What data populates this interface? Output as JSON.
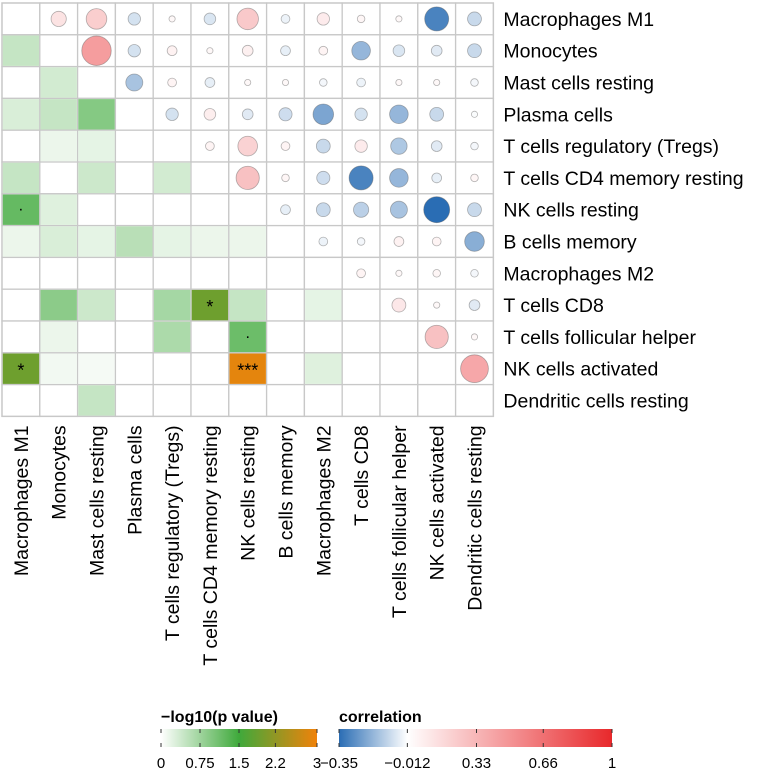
{
  "chart_data": {
    "type": "heatmap",
    "labels": [
      "Macrophages M1",
      "Monocytes",
      "Mast cells resting",
      "Plasma cells",
      "T cells regulatory (Tregs)",
      "T cells CD4 memory resting",
      "NK cells resting",
      "B cells memory",
      "Macrophages M2",
      "T cells CD8",
      "T cells follicular helper",
      "NK cells activated",
      "Dendritic cells resting"
    ],
    "lower_triangle": {
      "measure": "-log10(p value)",
      "cells": [
        {
          "row": 1,
          "col": 0,
          "value": 0.45,
          "sig": ""
        },
        {
          "row": 2,
          "col": 1,
          "value": 0.35,
          "sig": ""
        },
        {
          "row": 3,
          "col": 0,
          "value": 0.3,
          "sig": ""
        },
        {
          "row": 3,
          "col": 1,
          "value": 0.45,
          "sig": ""
        },
        {
          "row": 3,
          "col": 2,
          "value": 0.95,
          "sig": ""
        },
        {
          "row": 4,
          "col": 1,
          "value": 0.15,
          "sig": ""
        },
        {
          "row": 4,
          "col": 2,
          "value": 0.2,
          "sig": ""
        },
        {
          "row": 5,
          "col": 0,
          "value": 0.45,
          "sig": ""
        },
        {
          "row": 5,
          "col": 2,
          "value": 0.4,
          "sig": ""
        },
        {
          "row": 5,
          "col": 4,
          "value": 0.35,
          "sig": ""
        },
        {
          "row": 6,
          "col": 0,
          "value": 1.2,
          "sig": "."
        },
        {
          "row": 6,
          "col": 1,
          "value": 0.25,
          "sig": ""
        },
        {
          "row": 7,
          "col": 0,
          "value": 0.15,
          "sig": ""
        },
        {
          "row": 7,
          "col": 1,
          "value": 0.3,
          "sig": ""
        },
        {
          "row": 7,
          "col": 2,
          "value": 0.2,
          "sig": ""
        },
        {
          "row": 7,
          "col": 3,
          "value": 0.55,
          "sig": ""
        },
        {
          "row": 7,
          "col": 4,
          "value": 0.2,
          "sig": ""
        },
        {
          "row": 7,
          "col": 5,
          "value": 0.15,
          "sig": ""
        },
        {
          "row": 7,
          "col": 6,
          "value": 0.15,
          "sig": ""
        },
        {
          "row": 9,
          "col": 1,
          "value": 0.9,
          "sig": ""
        },
        {
          "row": 9,
          "col": 2,
          "value": 0.4,
          "sig": ""
        },
        {
          "row": 9,
          "col": 4,
          "value": 0.7,
          "sig": ""
        },
        {
          "row": 9,
          "col": 5,
          "value": 1.9,
          "sig": "*"
        },
        {
          "row": 9,
          "col": 6,
          "value": 0.45,
          "sig": ""
        },
        {
          "row": 9,
          "col": 8,
          "value": 0.2,
          "sig": ""
        },
        {
          "row": 10,
          "col": 1,
          "value": 0.15,
          "sig": ""
        },
        {
          "row": 10,
          "col": 4,
          "value": 0.65,
          "sig": ""
        },
        {
          "row": 10,
          "col": 6,
          "value": 1.15,
          "sig": "."
        },
        {
          "row": 11,
          "col": 0,
          "value": 1.9,
          "sig": "*"
        },
        {
          "row": 11,
          "col": 1,
          "value": 0.1,
          "sig": ""
        },
        {
          "row": 11,
          "col": 2,
          "value": 0.08,
          "sig": ""
        },
        {
          "row": 11,
          "col": 6,
          "value": 2.9,
          "sig": "***"
        },
        {
          "row": 11,
          "col": 8,
          "value": 0.25,
          "sig": ""
        },
        {
          "row": 12,
          "col": 2,
          "value": 0.45,
          "sig": ""
        }
      ]
    },
    "upper_triangle": {
      "measure": "correlation",
      "cells": [
        {
          "row": 0,
          "col": 1,
          "r": 0.12
        },
        {
          "row": 0,
          "col": 2,
          "r": 0.22
        },
        {
          "row": 0,
          "col": 3,
          "r": -0.08
        },
        {
          "row": 0,
          "col": 4,
          "r": 0.02
        },
        {
          "row": 0,
          "col": 5,
          "r": -0.07
        },
        {
          "row": 0,
          "col": 6,
          "r": 0.24
        },
        {
          "row": 0,
          "col": 7,
          "r": -0.04
        },
        {
          "row": 0,
          "col": 8,
          "r": 0.08
        },
        {
          "row": 0,
          "col": 9,
          "r": 0.03
        },
        {
          "row": 0,
          "col": 10,
          "r": 0.02
        },
        {
          "row": 0,
          "col": 11,
          "r": -0.3
        },
        {
          "row": 0,
          "col": 12,
          "r": -0.1
        },
        {
          "row": 1,
          "col": 2,
          "r": 0.45
        },
        {
          "row": 1,
          "col": 3,
          "r": -0.08
        },
        {
          "row": 1,
          "col": 4,
          "r": 0.05
        },
        {
          "row": 1,
          "col": 5,
          "r": 0.02
        },
        {
          "row": 1,
          "col": 6,
          "r": 0.06
        },
        {
          "row": 1,
          "col": 7,
          "r": -0.05
        },
        {
          "row": 1,
          "col": 8,
          "r": 0.04
        },
        {
          "row": 1,
          "col": 9,
          "r": -0.18
        },
        {
          "row": 1,
          "col": 10,
          "r": -0.07
        },
        {
          "row": 1,
          "col": 11,
          "r": -0.06
        },
        {
          "row": 1,
          "col": 12,
          "r": -0.1
        },
        {
          "row": 2,
          "col": 3,
          "r": -0.15
        },
        {
          "row": 2,
          "col": 4,
          "r": 0.04
        },
        {
          "row": 2,
          "col": 5,
          "r": -0.05
        },
        {
          "row": 2,
          "col": 6,
          "r": 0.02
        },
        {
          "row": 2,
          "col": 7,
          "r": 0.02
        },
        {
          "row": 2,
          "col": 8,
          "r": -0.03
        },
        {
          "row": 2,
          "col": 9,
          "r": -0.04
        },
        {
          "row": 2,
          "col": 10,
          "r": 0.02
        },
        {
          "row": 2,
          "col": 11,
          "r": 0.02
        },
        {
          "row": 2,
          "col": 12,
          "r": -0.03
        },
        {
          "row": 3,
          "col": 4,
          "r": -0.08
        },
        {
          "row": 3,
          "col": 5,
          "r": 0.07
        },
        {
          "row": 3,
          "col": 6,
          "r": -0.06
        },
        {
          "row": 3,
          "col": 7,
          "r": -0.09
        },
        {
          "row": 3,
          "col": 8,
          "r": -0.22
        },
        {
          "row": 3,
          "col": 9,
          "r": -0.08
        },
        {
          "row": 3,
          "col": 10,
          "r": -0.18
        },
        {
          "row": 3,
          "col": 11,
          "r": -0.1
        },
        {
          "row": 3,
          "col": 12,
          "r": -0.02
        },
        {
          "row": 4,
          "col": 5,
          "r": 0.04
        },
        {
          "row": 4,
          "col": 6,
          "r": 0.2
        },
        {
          "row": 4,
          "col": 7,
          "r": 0.04
        },
        {
          "row": 4,
          "col": 8,
          "r": -0.1
        },
        {
          "row": 4,
          "col": 9,
          "r": 0.08
        },
        {
          "row": 4,
          "col": 10,
          "r": -0.14
        },
        {
          "row": 4,
          "col": 11,
          "r": -0.06
        },
        {
          "row": 4,
          "col": 12,
          "r": -0.03
        },
        {
          "row": 5,
          "col": 6,
          "r": 0.28
        },
        {
          "row": 5,
          "col": 7,
          "r": 0.03
        },
        {
          "row": 5,
          "col": 8,
          "r": -0.09
        },
        {
          "row": 5,
          "col": 9,
          "r": -0.3
        },
        {
          "row": 5,
          "col": 10,
          "r": -0.18
        },
        {
          "row": 5,
          "col": 11,
          "r": -0.05
        },
        {
          "row": 5,
          "col": 12,
          "r": 0.03
        },
        {
          "row": 6,
          "col": 7,
          "r": -0.05
        },
        {
          "row": 6,
          "col": 8,
          "r": -0.1
        },
        {
          "row": 6,
          "col": 9,
          "r": -0.12
        },
        {
          "row": 6,
          "col": 10,
          "r": -0.15
        },
        {
          "row": 6,
          "col": 11,
          "r": -0.35
        },
        {
          "row": 6,
          "col": 12,
          "r": -0.1
        },
        {
          "row": 7,
          "col": 8,
          "r": -0.04
        },
        {
          "row": 7,
          "col": 9,
          "r": -0.03
        },
        {
          "row": 7,
          "col": 10,
          "r": 0.05
        },
        {
          "row": 7,
          "col": 11,
          "r": 0.04
        },
        {
          "row": 7,
          "col": 12,
          "r": -0.2
        },
        {
          "row": 8,
          "col": 9,
          "r": 0.04
        },
        {
          "row": 8,
          "col": 10,
          "r": 0.02
        },
        {
          "row": 8,
          "col": 11,
          "r": 0.03
        },
        {
          "row": 8,
          "col": 12,
          "r": -0.03
        },
        {
          "row": 9,
          "col": 10,
          "r": 0.1
        },
        {
          "row": 9,
          "col": 11,
          "r": 0.02
        },
        {
          "row": 9,
          "col": 12,
          "r": -0.06
        },
        {
          "row": 10,
          "col": 11,
          "r": 0.28
        },
        {
          "row": 10,
          "col": 12,
          "r": 0.02
        },
        {
          "row": 11,
          "col": 12,
          "r": 0.4
        }
      ]
    },
    "legends": {
      "pvalue": {
        "title": "−log10(p value)",
        "range": [
          0,
          3
        ],
        "ticks": [
          "0",
          "0.75",
          "1.5",
          "2.2",
          "3"
        ],
        "tick_values": [
          0,
          0.75,
          1.5,
          2.2,
          3
        ],
        "colors": [
          "#ffffff",
          "#3fa93b",
          "#f0820a"
        ]
      },
      "correlation": {
        "title": "correlation",
        "range": [
          -0.35,
          1
        ],
        "ticks": [
          "−0.35",
          "−0.012",
          "0.33",
          "0.66",
          "1"
        ],
        "tick_values": [
          -0.35,
          -0.012,
          0.33,
          0.66,
          1
        ],
        "colors": [
          "#2a6db4",
          "#ffffff",
          "#e8282b"
        ]
      }
    }
  }
}
